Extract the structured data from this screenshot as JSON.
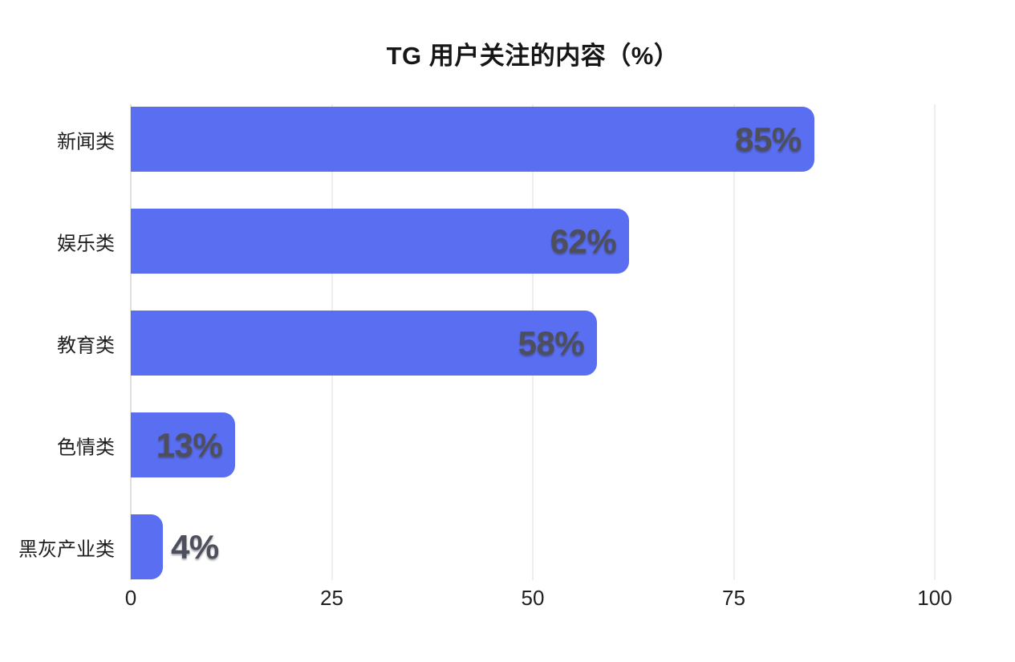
{
  "chart_data": {
    "type": "bar",
    "orientation": "horizontal",
    "title": "TG 用户关注的内容（%）",
    "categories": [
      "新闻类",
      "娱乐类",
      "教育类",
      "色情类",
      "黑灰产业类"
    ],
    "values": [
      85,
      62,
      58,
      13,
      4
    ],
    "value_labels": [
      "85%",
      "62%",
      "58%",
      "13%",
      "4%"
    ],
    "xlabel": "",
    "ylabel": "",
    "xlim": [
      0,
      100
    ],
    "x_ticks": [
      0,
      25,
      50,
      75,
      100
    ],
    "grid": "vertical-gridlines-on",
    "legend": "none",
    "colors": {
      "bar": "#5a6ef2",
      "value_text": "#4d505c",
      "category_text": "#1f1f1f",
      "axis_tick_text": "#1f1f1f",
      "gridline": "#dcdcdc",
      "zero_gridline": "#c2c2c2",
      "title_text": "#161616",
      "background": "#ffffff"
    }
  }
}
